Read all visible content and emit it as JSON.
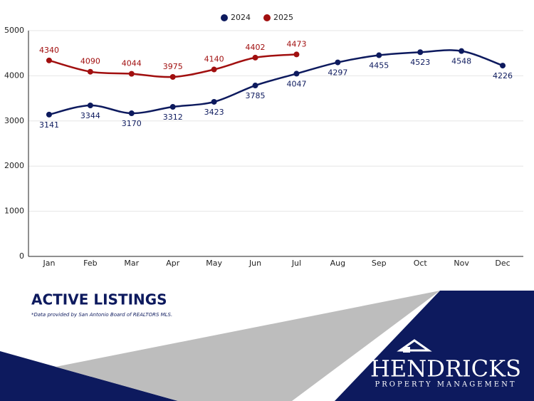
{
  "chart_data": {
    "type": "line",
    "title": "ACTIVE LISTINGS",
    "note": "*Data provided by San Antonio Board of REALTORS MLS.",
    "categories": [
      "Jan",
      "Feb",
      "Mar",
      "Apr",
      "May",
      "Jun",
      "Jul",
      "Aug",
      "Sep",
      "Oct",
      "Nov",
      "Dec"
    ],
    "series": [
      {
        "name": "2024",
        "color": "#0d1a5e",
        "values": [
          3141,
          3344,
          3170,
          3312,
          3423,
          3785,
          4047,
          4297,
          4455,
          4523,
          4548,
          4226
        ]
      },
      {
        "name": "2025",
        "color": "#a10f0f",
        "values": [
          4340,
          4090,
          4044,
          3975,
          4140,
          4402,
          4473,
          null,
          null,
          null,
          null,
          null
        ]
      }
    ],
    "ylim": [
      0,
      5000
    ],
    "yticks": [
      0,
      1000,
      2000,
      3000,
      4000,
      5000
    ],
    "grid": true,
    "legend": "top",
    "smooth": true
  },
  "brand": {
    "name": "HENDRICKS",
    "tagline": "PROPERTY MANAGEMENT"
  }
}
